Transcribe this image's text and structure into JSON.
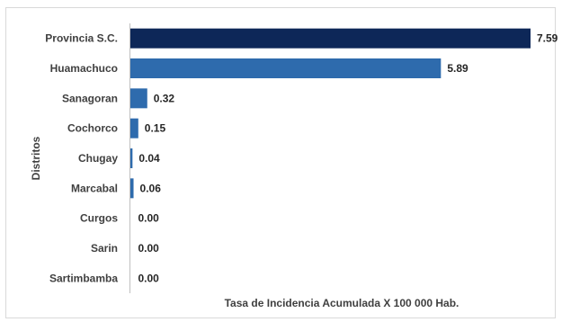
{
  "chart_data": {
    "type": "bar",
    "orientation": "horizontal",
    "categories": [
      "Provincia S.C.",
      "Huamachuco",
      "Sanagoran",
      "Cochorco",
      "Chugay",
      "Marcabal",
      "Curgos",
      "Sarin",
      "Sartimbamba"
    ],
    "values": [
      7.59,
      5.89,
      0.32,
      0.15,
      0.04,
      0.06,
      0.0,
      0.0,
      0.0
    ],
    "value_labels": [
      "7.59",
      "5.89",
      "0.32",
      "0.15",
      "0.04",
      "0.06",
      "0.00",
      "0.00",
      "0.00"
    ],
    "bar_colors": [
      "#0d2758",
      "#2e6bad",
      "#2e6bad",
      "#2e6bad",
      "#2e6bad",
      "#2e6bad",
      "#2e6bad",
      "#2e6bad",
      "#2e6bad"
    ],
    "xlabel": "Tasa de Incidencia Acumulada X 100 000 Hab.",
    "ylabel": "Distritos",
    "xlim": [
      0,
      7.59
    ],
    "grid": false,
    "legend": "none"
  }
}
